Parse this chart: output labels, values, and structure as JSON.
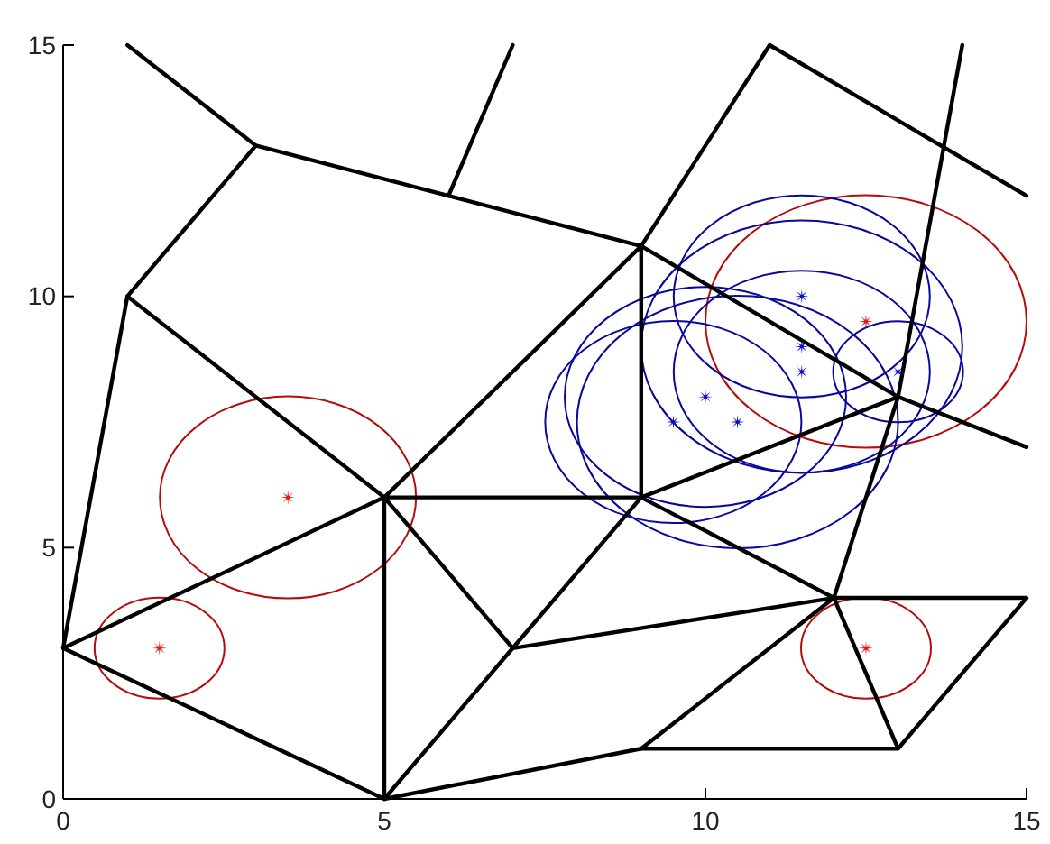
{
  "chart_data": {
    "type": "line",
    "xlim": [
      0,
      15
    ],
    "ylim": [
      0,
      15
    ],
    "xticks": [
      0,
      5,
      10,
      15
    ],
    "yticks": [
      0,
      5,
      10,
      15
    ],
    "series": [
      {
        "color": "#000000",
        "x": [
          1,
          3,
          6,
          9,
          11,
          15
        ],
        "values": [
          15,
          13,
          12,
          11,
          15,
          12
        ]
      },
      {
        "color": "#000000",
        "x": [
          7,
          6
        ],
        "values": [
          15,
          12
        ]
      },
      {
        "color": "#000000",
        "x": [
          3,
          1,
          0,
          5,
          9,
          13,
          15,
          12,
          13
        ],
        "values": [
          13,
          10,
          3,
          0,
          1,
          1,
          4,
          4,
          1
        ]
      },
      {
        "color": "#000000",
        "x": [
          1,
          5,
          0
        ],
        "values": [
          10,
          6,
          3
        ]
      },
      {
        "color": "#000000",
        "x": [
          5,
          5,
          9,
          9,
          5,
          7
        ],
        "values": [
          0,
          6,
          11,
          6,
          6,
          3
        ]
      },
      {
        "color": "#000000",
        "x": [
          5,
          7,
          12,
          9
        ],
        "values": [
          0,
          3,
          4,
          1
        ]
      },
      {
        "color": "#000000",
        "x": [
          7,
          9,
          12
        ],
        "values": [
          3,
          6,
          4
        ]
      },
      {
        "color": "#000000",
        "x": [
          9,
          13,
          15
        ],
        "values": [
          6,
          8,
          7
        ]
      },
      {
        "color": "#000000",
        "x": [
          9,
          13,
          12
        ],
        "values": [
          11,
          8,
          4
        ]
      },
      {
        "color": "#000000",
        "x": [
          14,
          13
        ],
        "values": [
          15,
          8
        ]
      },
      {
        "type": "scatter",
        "marker": "star",
        "color": "#e81010",
        "x": [
          1.5,
          3.5,
          12.5,
          12.5
        ],
        "values": [
          3,
          6,
          3,
          9.5
        ]
      },
      {
        "type": "scatter",
        "marker": "star",
        "color": "#0a0ac8",
        "x": [
          11.5,
          11.5,
          11.5,
          10,
          9.5,
          10.5,
          13
        ],
        "values": [
          10,
          9,
          8.5,
          8,
          7.5,
          7.5,
          8.5
        ]
      }
    ]
  }
}
